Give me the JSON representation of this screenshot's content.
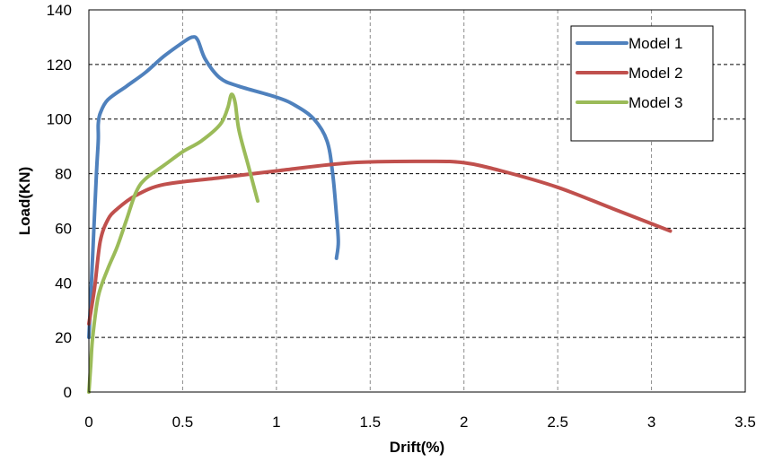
{
  "chart_data": {
    "type": "line",
    "xlabel": "Drift(%)",
    "ylabel": "Load(KN)",
    "xlim": [
      0,
      3.5
    ],
    "ylim": [
      0,
      140
    ],
    "xticks": [
      "0",
      "0.5",
      "1",
      "1.5",
      "2",
      "2.5",
      "3",
      "3.5"
    ],
    "yticks": [
      "0",
      "20",
      "40",
      "60",
      "80",
      "100",
      "120",
      "140"
    ],
    "grid": "dashed",
    "legend_position": "top-right",
    "series": [
      {
        "name": "Model 1",
        "color": "#4f81bd",
        "x": [
          0,
          0.02,
          0.04,
          0.05,
          0.05,
          0.06,
          0.1,
          0.2,
          0.3,
          0.4,
          0.5,
          0.55,
          0.58,
          0.62,
          0.7,
          0.8,
          1.0,
          1.1,
          1.2,
          1.27,
          1.3,
          1.32,
          1.33,
          1.32
        ],
        "y": [
          20,
          50,
          80,
          92,
          98,
          102,
          107,
          112,
          117,
          123,
          128,
          130,
          129,
          122,
          115,
          112,
          108,
          105,
          100,
          92,
          80,
          65,
          55,
          49
        ]
      },
      {
        "name": "Model 2",
        "color": "#c0504d",
        "x": [
          0,
          0.03,
          0.06,
          0.1,
          0.15,
          0.25,
          0.4,
          0.7,
          1.0,
          1.4,
          1.8,
          2.0,
          2.2,
          2.5,
          2.8,
          3.1
        ],
        "y": [
          25,
          38,
          55,
          63,
          67,
          72,
          76,
          78.5,
          81,
          84,
          84.5,
          84,
          81,
          75,
          67,
          59
        ]
      },
      {
        "name": "Model 3",
        "color": "#9bbb59",
        "x": [
          0,
          0.01,
          0.02,
          0.05,
          0.1,
          0.15,
          0.2,
          0.25,
          0.3,
          0.4,
          0.5,
          0.6,
          0.7,
          0.74,
          0.76,
          0.78,
          0.8,
          0.85,
          0.9
        ],
        "y": [
          0,
          10,
          20,
          35,
          45,
          53,
          63,
          73,
          78,
          83,
          88,
          92,
          98,
          104,
          109,
          106,
          96,
          83,
          70
        ]
      }
    ]
  }
}
